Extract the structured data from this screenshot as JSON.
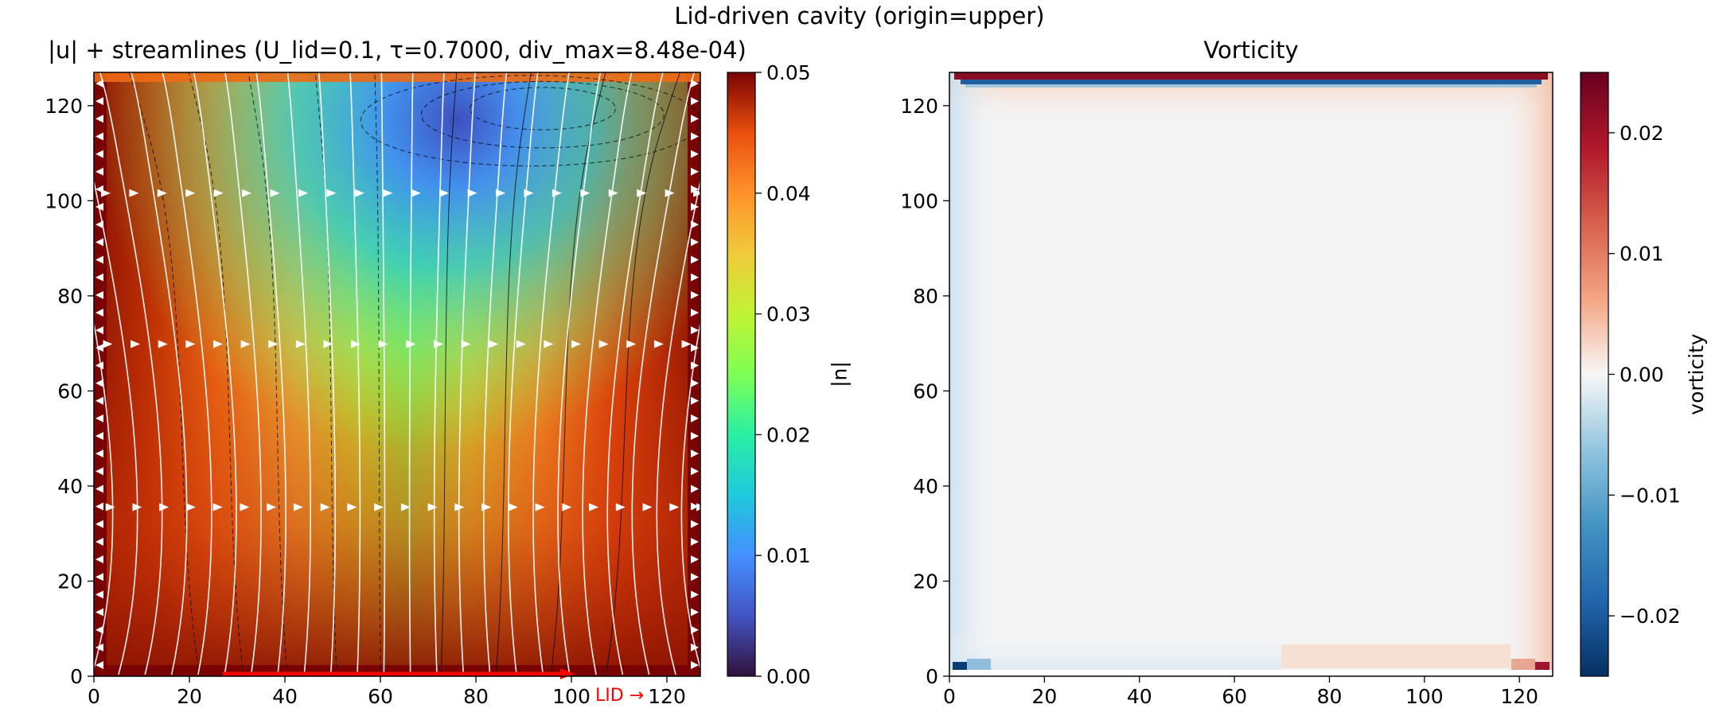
{
  "figure": {
    "suptitle": "Lid-driven cavity (origin=upper)"
  },
  "chart_data": [
    {
      "type": "heatmap",
      "title": "|u| + streamlines (U_lid=0.1, τ=0.7000, div_max=8.48e-04)",
      "xlabel": "",
      "ylabel": "",
      "xlim": [
        0,
        127
      ],
      "ylim": [
        0,
        127
      ],
      "x_ticks": [
        "0",
        "20",
        "40",
        "60",
        "80",
        "100",
        "120"
      ],
      "y_ticks": [
        "0",
        "20",
        "40",
        "60",
        "80",
        "100",
        "120"
      ],
      "x_tick_values": [
        0,
        20,
        40,
        60,
        80,
        100,
        120
      ],
      "y_tick_values": [
        0,
        20,
        40,
        60,
        80,
        100,
        120
      ],
      "colormap": "turbo",
      "colorbar": {
        "label": "|u|",
        "range": [
          0,
          0.05
        ],
        "ticks": [
          "0.00",
          "0.01",
          "0.02",
          "0.03",
          "0.04",
          "0.05"
        ],
        "tick_values": [
          0,
          0.01,
          0.02,
          0.03,
          0.04,
          0.05
        ]
      },
      "overlays": [
        "streamlines (white, with arrows)",
        "stream-function contours (black, dashed for negative)"
      ],
      "annotation": {
        "text": "LID →",
        "color": "#ff0000",
        "lid_segment_x": [
          27,
          100
        ],
        "lid_y": 0
      }
    },
    {
      "type": "heatmap",
      "title": "Vorticity",
      "xlabel": "",
      "ylabel": "",
      "xlim": [
        0,
        127
      ],
      "ylim": [
        0,
        127
      ],
      "x_ticks": [
        "0",
        "20",
        "40",
        "60",
        "80",
        "100",
        "120"
      ],
      "y_ticks": [
        "0",
        "20",
        "40",
        "60",
        "80",
        "100",
        "120"
      ],
      "x_tick_values": [
        0,
        20,
        40,
        60,
        80,
        100,
        120
      ],
      "y_tick_values": [
        0,
        20,
        40,
        60,
        80,
        100,
        120
      ],
      "colormap": "RdBu_r",
      "colorbar": {
        "label": "vorticity",
        "range": [
          -0.025,
          0.025
        ],
        "ticks": [
          "−0.02",
          "−0.01",
          "0.00",
          "0.01",
          "0.02"
        ],
        "tick_values": [
          -0.02,
          -0.01,
          0,
          0.01,
          0.02
        ]
      }
    }
  ],
  "colors": {
    "lid_arrow": "#ff0000",
    "streamline": "#ffffff",
    "contour": "#000000"
  }
}
